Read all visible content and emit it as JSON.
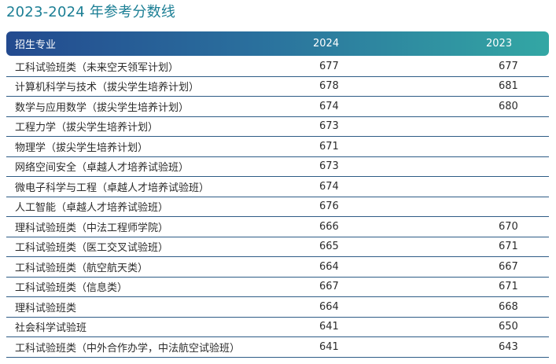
{
  "title": "2023-2024 年参考分数线",
  "table": {
    "headers": {
      "major": "招生专业",
      "y2024": "2024",
      "y2023": "2023"
    },
    "rows": [
      {
        "major": "工科试验班类（未来空天领军计划）",
        "y2024": "677",
        "y2023": "677"
      },
      {
        "major": "计算机科学与技术（拔尖学生培养计划）",
        "y2024": "678",
        "y2023": "681"
      },
      {
        "major": "数学与应用数学（拔尖学生培养计划）",
        "y2024": "674",
        "y2023": "680"
      },
      {
        "major": "工程力学（拔尖学生培养计划）",
        "y2024": "673",
        "y2023": ""
      },
      {
        "major": "物理学（拔尖学生培养计划）",
        "y2024": "671",
        "y2023": ""
      },
      {
        "major": "网络空间安全（卓越人才培养试验班）",
        "y2024": "673",
        "y2023": ""
      },
      {
        "major": "微电子科学与工程（卓越人才培养试验班）",
        "y2024": "674",
        "y2023": ""
      },
      {
        "major": "人工智能（卓越人才培养试验班）",
        "y2024": "676",
        "y2023": ""
      },
      {
        "major": "理科试验班类（中法工程师学院）",
        "y2024": "666",
        "y2023": "670"
      },
      {
        "major": "工科试验班类（医工交叉试验班）",
        "y2024": "665",
        "y2023": "671"
      },
      {
        "major": "工科试验班类（航空航天类）",
        "y2024": "664",
        "y2023": "667"
      },
      {
        "major": "工科试验班类（信息类）",
        "y2024": "667",
        "y2023": "671"
      },
      {
        "major": "理科试验班类",
        "y2024": "664",
        "y2023": "668"
      },
      {
        "major": "社会科学试验班",
        "y2024": "641",
        "y2023": "650"
      },
      {
        "major": "工科试验班类（中外合作办学，中法航空试验班）",
        "y2024": "641",
        "y2023": "643"
      }
    ]
  },
  "colors": {
    "title": "#1c7f95",
    "header_gradient_start": "#234a8f",
    "header_gradient_end": "#33a7a4",
    "row_divider": "#2e5c86"
  }
}
